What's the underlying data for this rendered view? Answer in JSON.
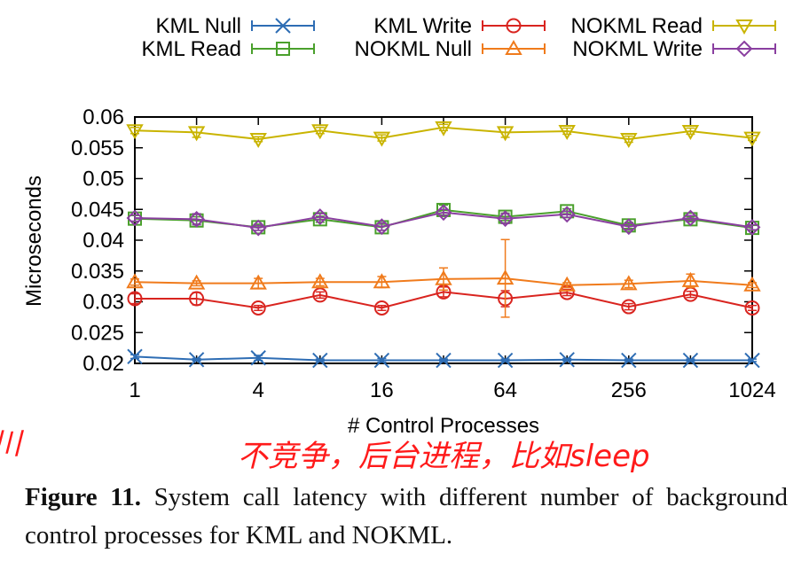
{
  "chart_data": {
    "type": "line",
    "xlabel": "# Control Processes",
    "ylabel": "Microseconds",
    "x": [
      1,
      2,
      4,
      8,
      16,
      32,
      64,
      128,
      256,
      512,
      1024
    ],
    "xscale": "log2",
    "xticks": [
      1,
      4,
      16,
      64,
      256,
      1024
    ],
    "xtick_labels": [
      "1",
      "4",
      "16",
      "64",
      "256",
      "1024"
    ],
    "ylim": [
      0.02,
      0.06
    ],
    "yticks": [
      0.02,
      0.025,
      0.03,
      0.035,
      0.04,
      0.045,
      0.05,
      0.055,
      0.06
    ],
    "ytick_labels": [
      "0.02",
      "0.025",
      "0.03",
      "0.035",
      "0.04",
      "0.045",
      "0.05",
      "0.055",
      "0.06"
    ],
    "grid": false,
    "legend_position": "top",
    "series": [
      {
        "name": "KML Null",
        "color": "#2e6db4",
        "marker": "x",
        "values": [
          0.0211,
          0.0206,
          0.0209,
          0.0205,
          0.0205,
          0.0205,
          0.0205,
          0.0206,
          0.0205,
          0.0205,
          0.0205
        ],
        "errors": [
          0.0003,
          0.0002,
          0.0004,
          0.0002,
          0.0003,
          0.0002,
          0.0002,
          0.0002,
          0.0002,
          0.0002,
          0.0002
        ]
      },
      {
        "name": "KML Read",
        "color": "#4aa02c",
        "marker": "square",
        "values": [
          0.0435,
          0.0432,
          0.0421,
          0.0434,
          0.0421,
          0.0449,
          0.0438,
          0.0447,
          0.0424,
          0.0434,
          0.042
        ],
        "errors": [
          0.0005,
          0.0006,
          0.0005,
          0.0005,
          0.0005,
          0.0008,
          0.0006,
          0.0004,
          0.0005,
          0.0004,
          0.0004
        ]
      },
      {
        "name": "KML Write",
        "color": "#d9241f",
        "marker": "circle",
        "values": [
          0.0305,
          0.0305,
          0.029,
          0.0311,
          0.029,
          0.0316,
          0.0305,
          0.0315,
          0.0292,
          0.0312,
          0.029
        ],
        "errors": [
          0.0008,
          0.001,
          0.0004,
          0.0005,
          0.0004,
          0.0008,
          0.0013,
          0.0005,
          0.0005,
          0.0005,
          0.0004
        ]
      },
      {
        "name": "NOKML Null",
        "color": "#f07b1c",
        "marker": "triangle-up",
        "values": [
          0.0332,
          0.033,
          0.033,
          0.0332,
          0.0332,
          0.0337,
          0.0338,
          0.0327,
          0.0329,
          0.0334,
          0.0327
        ],
        "errors": [
          0.0005,
          0.0004,
          0.0008,
          0.0006,
          0.0009,
          0.0018,
          0.0063,
          0.0004,
          0.0006,
          0.0011,
          0.0004
        ]
      },
      {
        "name": "NOKML Read",
        "color": "#c9b400",
        "marker": "triangle-down",
        "values": [
          0.0578,
          0.0575,
          0.0564,
          0.0578,
          0.0566,
          0.0583,
          0.0575,
          0.0577,
          0.0564,
          0.0577,
          0.0566
        ],
        "errors": [
          0.0005,
          0.0008,
          0.0004,
          0.0005,
          0.0005,
          0.0005,
          0.0008,
          0.0005,
          0.0005,
          0.0005,
          0.0004
        ]
      },
      {
        "name": "NOKML Write",
        "color": "#8a3fa0",
        "marker": "diamond",
        "values": [
          0.0436,
          0.0434,
          0.042,
          0.0438,
          0.0422,
          0.0445,
          0.0435,
          0.0442,
          0.0422,
          0.0436,
          0.0421
        ],
        "errors": [
          0.0005,
          0.0009,
          0.0004,
          0.0005,
          0.0006,
          0.0005,
          0.0008,
          0.0005,
          0.0005,
          0.0004,
          0.0004
        ]
      }
    ]
  },
  "annotation": {
    "handwritten_note": "不竞争，后台进程，比如sleep",
    "left_edge_mark": "川"
  },
  "caption": {
    "label": "Figure 11.",
    "text": " System call latency with different number of background control processes for KML and NOKML."
  }
}
